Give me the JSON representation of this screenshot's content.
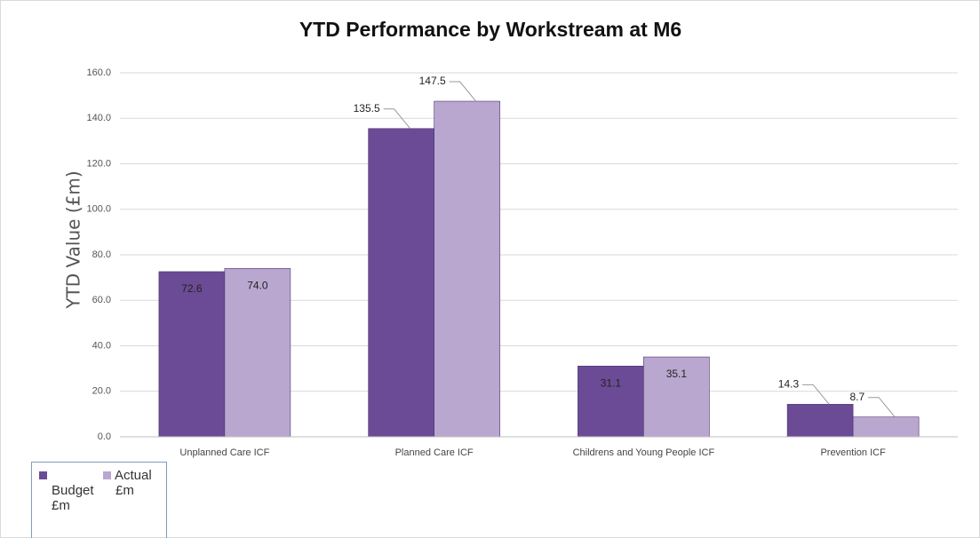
{
  "chart_data": {
    "type": "bar",
    "title": "YTD Performance by Workstream at M6",
    "y_label": "YTD Value (£m)",
    "categories": [
      "Unplanned Care ICF",
      "Planned Care ICF",
      "Childrens and Young People ICF",
      "Prevention ICF"
    ],
    "series": [
      {
        "name": "Budget £m",
        "color": "#6b4b95",
        "values": [
          72.6,
          135.5,
          31.1,
          14.3
        ],
        "value_labels": [
          "72.6",
          "135.5",
          "31.1",
          "14.3"
        ]
      },
      {
        "name": "Actual £m",
        "color": "#b9a7d0",
        "values": [
          74,
          147.5,
          35.1,
          8.7
        ],
        "value_labels": [
          "74.0",
          "147.5",
          "35.1",
          "8.7"
        ]
      }
    ],
    "ylim": [
      0,
      160
    ],
    "yticks": [
      {
        "value": 0,
        "label": "0.0"
      },
      {
        "value": 20,
        "label": "20.0"
      },
      {
        "value": 40,
        "label": "40.0"
      },
      {
        "value": 60,
        "label": "60.0"
      },
      {
        "value": 80,
        "label": "80.0"
      },
      {
        "value": 100,
        "label": "100.0"
      },
      {
        "value": 120,
        "label": "120.0"
      },
      {
        "value": 140,
        "label": "140.0"
      },
      {
        "value": 160,
        "label": "160.0"
      }
    ],
    "grid": true,
    "legend": "bottom-left"
  }
}
